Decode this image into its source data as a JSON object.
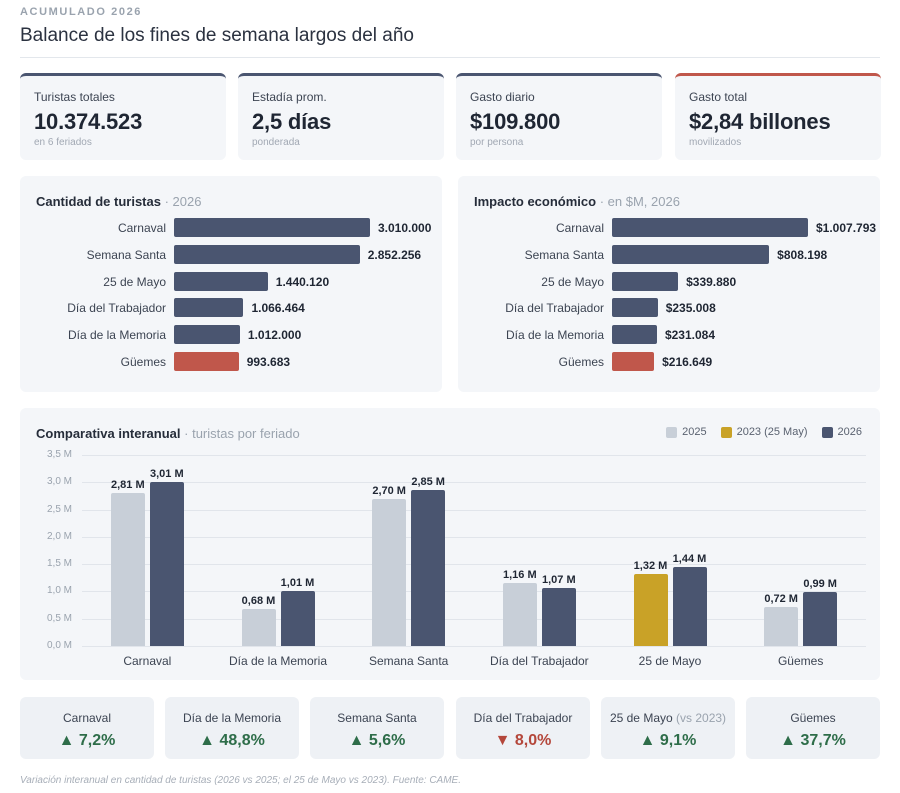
{
  "header": {
    "eyebrow": "ACUMULADO 2026",
    "title": "Balance de los fines de semana largos del año"
  },
  "kpis": [
    {
      "label": "Turistas totales",
      "value": "10.374.523",
      "sub": "en 6 feriados",
      "accent": "#4a5570"
    },
    {
      "label": "Estadía prom.",
      "value": "2,5 días",
      "sub": "ponderada",
      "accent": "#4a5570"
    },
    {
      "label": "Gasto diario",
      "value": "$109.800",
      "sub": "por persona",
      "accent": "#4a5570"
    },
    {
      "label": "Gasto total",
      "value": "$2,84 billones",
      "sub": "movilizados",
      "accent": "#c0574b"
    }
  ],
  "colors": {
    "primary": "#4a5570",
    "highlight": "#c0574b",
    "y2025": "#c8cfd8",
    "y2023": "#c9a227",
    "up": "#2e6d49",
    "down": "#b4473b"
  },
  "chart_data": [
    {
      "type": "bar",
      "orientation": "horizontal",
      "title": "Cantidad de turistas",
      "subtitle": "2026",
      "categories": [
        "Carnaval",
        "Semana Santa",
        "25 de Mayo",
        "Día del Trabajador",
        "Día de la Memoria",
        "Güemes"
      ],
      "values": [
        3010000,
        2852256,
        1440120,
        1066464,
        1012000,
        993683
      ],
      "value_labels": [
        "3.010.000",
        "2.852.256",
        "1.440.120",
        "1.066.464",
        "1.012.000",
        "993.683"
      ],
      "highlight": [
        "Güemes"
      ]
    },
    {
      "type": "bar",
      "orientation": "horizontal",
      "title": "Impacto económico",
      "subtitle": "en $M, 2026",
      "categories": [
        "Carnaval",
        "Semana Santa",
        "25 de Mayo",
        "Día del Trabajador",
        "Día de la Memoria",
        "Güemes"
      ],
      "values": [
        1007793,
        808198,
        339880,
        235008,
        231084,
        216649
      ],
      "value_labels": [
        "$1.007.793",
        "$808.198",
        "$339.880",
        "$235.008",
        "$231.084",
        "$216.649"
      ],
      "highlight": [
        "Güemes"
      ]
    },
    {
      "type": "bar",
      "orientation": "vertical",
      "title": "Comparativa interanual",
      "subtitle": "turistas por feriado",
      "ylim": [
        0,
        3.5
      ],
      "yticks": [
        "0,0 M",
        "0,5 M",
        "1,0 M",
        "1,5 M",
        "2,0 M",
        "2,5 M",
        "3,0 M",
        "3,5 M"
      ],
      "legend_position": "top-right",
      "legend": [
        "2025",
        "2023 (25 May)",
        "2026"
      ],
      "categories": [
        "Carnaval",
        "Día de la Memoria",
        "Semana Santa",
        "Día del Trabajador",
        "25 de Mayo",
        "Güemes"
      ],
      "series": [
        {
          "name": "2025",
          "values": [
            2.81,
            0.68,
            2.7,
            1.16,
            null,
            0.72
          ],
          "labels": [
            "2,81 M",
            "0,68 M",
            "2,70 M",
            "1,16 M",
            null,
            "0,72 M"
          ]
        },
        {
          "name": "2023 (25 May)",
          "values": [
            null,
            null,
            null,
            null,
            1.32,
            null
          ],
          "labels": [
            null,
            null,
            null,
            null,
            "1,32 M",
            null
          ]
        },
        {
          "name": "2026",
          "values": [
            3.01,
            1.01,
            2.85,
            1.07,
            1.44,
            0.99
          ],
          "labels": [
            "3,01 M",
            "1,01 M",
            "2,85 M",
            "1,07 M",
            "1,44 M",
            "0,99 M"
          ]
        }
      ]
    }
  ],
  "variations": [
    {
      "label": "Carnaval",
      "note": "",
      "value": "7,2%",
      "dir": "up"
    },
    {
      "label": "Día de la Memoria",
      "note": "",
      "value": "48,8%",
      "dir": "up"
    },
    {
      "label": "Semana Santa",
      "note": "",
      "value": "5,6%",
      "dir": "up"
    },
    {
      "label": "Día del Trabajador",
      "note": "",
      "value": "8,0%",
      "dir": "down"
    },
    {
      "label": "25 de Mayo",
      "note": "(vs 2023)",
      "value": "9,1%",
      "dir": "up"
    },
    {
      "label": "Güemes",
      "note": "",
      "value": "37,7%",
      "dir": "up"
    }
  ],
  "footnote": "Variación interanual en cantidad de turistas (2026 vs 2025; el 25 de Mayo vs 2023). Fuente: CAME."
}
